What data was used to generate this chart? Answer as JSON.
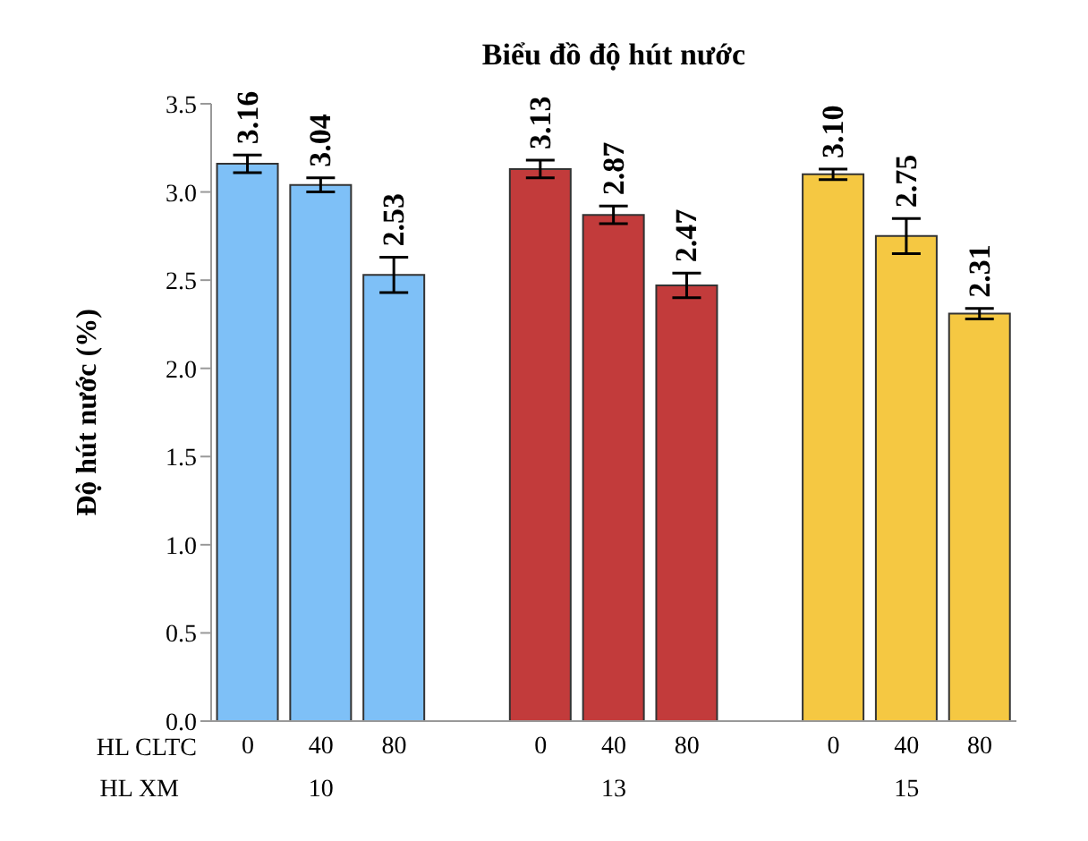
{
  "chart_data": {
    "type": "bar",
    "title": "Biểu đồ độ hút nước",
    "ylabel": "Độ hút nước (%)",
    "categories": [
      "0",
      "40",
      "80",
      null,
      "0",
      "40",
      "80",
      null,
      "0",
      "40",
      "80"
    ],
    "values": [
      3.16,
      3.04,
      2.53,
      null,
      3.13,
      2.87,
      2.47,
      null,
      3.1,
      2.75,
      2.31
    ],
    "errors": [
      0.05,
      0.04,
      0.1,
      null,
      0.05,
      0.05,
      0.07,
      null,
      0.03,
      0.1,
      0.03
    ],
    "value_labels": [
      "3.16",
      "3.04",
      "2.53",
      null,
      "3.13",
      "2.87",
      "2.47",
      null,
      "3.10",
      "2.75",
      "2.31"
    ],
    "colors": [
      "#7ec0f7",
      "#7ec0f7",
      "#7ec0f7",
      null,
      "#c23b3b",
      "#c23b3b",
      "#c23b3b",
      null,
      "#f5c842",
      "#f5c842",
      "#f5c842"
    ],
    "ylim": [
      0,
      3.5
    ],
    "yticks": [
      {
        "value": 0,
        "label": "0.0"
      },
      {
        "value": 0.5,
        "label": "0.5"
      },
      {
        "value": 1,
        "label": "1.0"
      },
      {
        "value": 1.5,
        "label": "1.5"
      },
      {
        "value": 2,
        "label": "2.0"
      },
      {
        "value": 2.5,
        "label": "2.5"
      },
      {
        "value": 3,
        "label": "3.0"
      },
      {
        "value": 3.5,
        "label": "3.5"
      }
    ],
    "annotations": [
      "HL CLTC",
      "HL XM",
      "10",
      "13",
      "15"
    ],
    "grid": false,
    "legend": false
  }
}
